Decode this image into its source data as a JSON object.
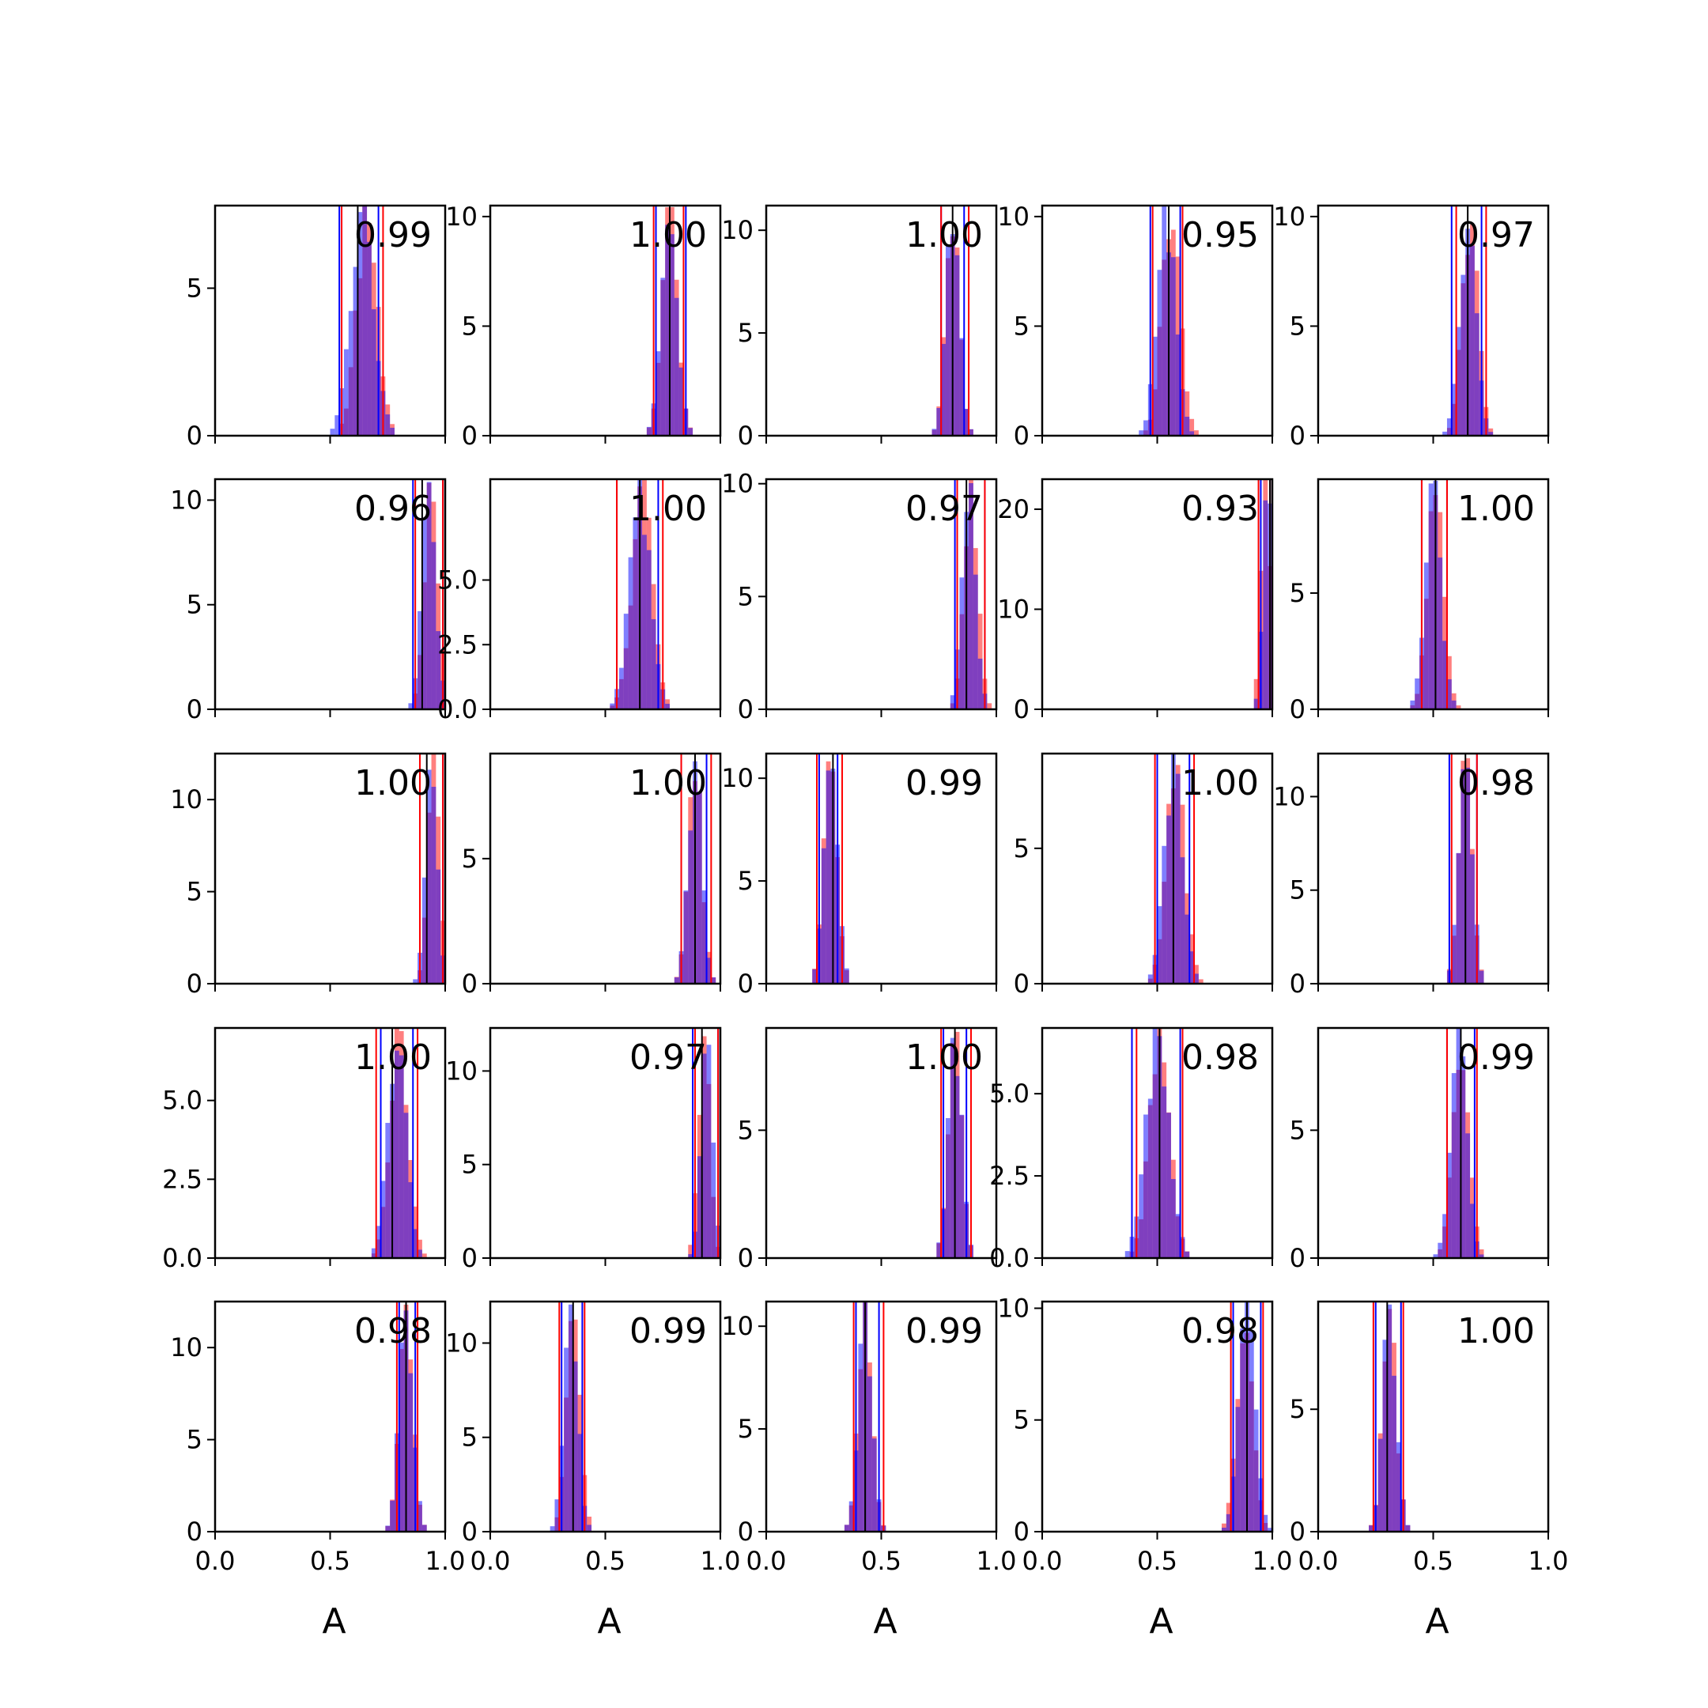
{
  "chart_data": {
    "type": "histogram-grid",
    "rows": 5,
    "cols": 5,
    "x_range": [
      0.0,
      1.0
    ],
    "x_ticks": [
      0.0,
      0.5,
      1.0
    ],
    "x_tick_labels": [
      "0.0",
      "0.5",
      "1.0"
    ],
    "xlabel": "A",
    "colors": {
      "red": "#ff0000",
      "blue": "#0000ff",
      "overlap": "#7f00bf",
      "mean_line": "#000000"
    },
    "bin_width": 0.02,
    "panels": [
      {
        "r": "0.99",
        "ymax": 7.8,
        "yticks": [
          0,
          5
        ],
        "ytick_labels": [
          "0",
          "5"
        ],
        "mean": 0.62,
        "red": {
          "center": 0.66,
          "sd": 0.045,
          "lines": [
            0.55,
            0.73
          ]
        },
        "blue": {
          "center": 0.64,
          "sd": 0.05,
          "lines": [
            0.54,
            0.71
          ]
        }
      },
      {
        "r": "1.00",
        "ymax": 10.5,
        "yticks": [
          0,
          5,
          10
        ],
        "ytick_labels": [
          "0",
          "5",
          "10"
        ],
        "mean": 0.78,
        "red": {
          "center": 0.78,
          "sd": 0.035,
          "lines": [
            0.71,
            0.84
          ]
        },
        "blue": {
          "center": 0.78,
          "sd": 0.035,
          "lines": [
            0.72,
            0.85
          ]
        }
      },
      {
        "r": "1.00",
        "ymax": 11.2,
        "yticks": [
          0,
          5,
          10
        ],
        "ytick_labels": [
          "0",
          "5",
          "10"
        ],
        "mean": 0.81,
        "red": {
          "center": 0.81,
          "sd": 0.03,
          "lines": [
            0.76,
            0.88
          ]
        },
        "blue": {
          "center": 0.81,
          "sd": 0.03,
          "lines": [
            0.76,
            0.86
          ]
        }
      },
      {
        "r": "0.95",
        "ymax": 10.5,
        "yticks": [
          0,
          5,
          10
        ],
        "ytick_labels": [
          "0",
          "5",
          "10"
        ],
        "mean": 0.55,
        "red": {
          "center": 0.56,
          "sd": 0.04,
          "lines": [
            0.48,
            0.61
          ]
        },
        "blue": {
          "center": 0.54,
          "sd": 0.04,
          "lines": [
            0.47,
            0.6
          ]
        }
      },
      {
        "r": "0.97",
        "ymax": 10.5,
        "yticks": [
          0,
          5,
          10
        ],
        "ytick_labels": [
          "0",
          "5",
          "10"
        ],
        "mean": 0.65,
        "red": {
          "center": 0.66,
          "sd": 0.035,
          "lines": [
            0.6,
            0.73
          ]
        },
        "blue": {
          "center": 0.65,
          "sd": 0.035,
          "lines": [
            0.58,
            0.71
          ]
        }
      },
      {
        "r": "0.96",
        "ymax": 11.0,
        "yticks": [
          0,
          5,
          10
        ],
        "ytick_labels": [
          "0",
          "5",
          "10"
        ],
        "mean": 0.9,
        "red": {
          "center": 0.94,
          "sd": 0.03,
          "lines": [
            0.87,
            0.99
          ]
        },
        "blue": {
          "center": 0.93,
          "sd": 0.03,
          "lines": [
            0.86,
            0.99
          ]
        }
      },
      {
        "r": "1.00",
        "ymax": 8.9,
        "yticks": [
          0,
          2.5,
          5
        ],
        "ytick_labels": [
          "0.0",
          "2.5",
          "5.0"
        ],
        "mean": 0.65,
        "red": {
          "center": 0.66,
          "sd": 0.045,
          "lines": [
            0.55,
            0.75
          ]
        },
        "blue": {
          "center": 0.65,
          "sd": 0.045,
          "lines": [
            0.55,
            0.73
          ]
        }
      },
      {
        "r": "0.97",
        "ymax": 10.2,
        "yticks": [
          0,
          5,
          10
        ],
        "ytick_labels": [
          "0",
          "5",
          "10"
        ],
        "mean": 0.87,
        "red": {
          "center": 0.89,
          "sd": 0.03,
          "lines": [
            0.83,
            0.95
          ]
        },
        "blue": {
          "center": 0.88,
          "sd": 0.03,
          "lines": [
            0.82,
            0.95
          ]
        }
      },
      {
        "r": "0.93",
        "ymax": 23.0,
        "yticks": [
          0,
          10,
          20
        ],
        "ytick_labels": [
          "0",
          "10",
          "20"
        ],
        "mean": 0.99,
        "red": {
          "center": 0.97,
          "sd": 0.02,
          "lines": [
            0.94,
            0.99
          ]
        },
        "blue": {
          "center": 0.98,
          "sd": 0.02,
          "lines": [
            0.95,
            0.99
          ]
        }
      },
      {
        "r": "1.00",
        "ymax": 9.9,
        "yticks": [
          0,
          5
        ],
        "ytick_labels": [
          "0",
          "5"
        ],
        "mean": 0.51,
        "red": {
          "center": 0.51,
          "sd": 0.035,
          "lines": [
            0.45,
            0.56
          ]
        },
        "blue": {
          "center": 0.5,
          "sd": 0.035,
          "lines": [
            0.45,
            0.56
          ]
        }
      },
      {
        "r": "1.00",
        "ymax": 12.5,
        "yticks": [
          0,
          5,
          10
        ],
        "ytick_labels": [
          "0",
          "5",
          "10"
        ],
        "mean": 0.92,
        "red": {
          "center": 0.95,
          "sd": 0.025,
          "lines": [
            0.89,
            0.99
          ]
        },
        "blue": {
          "center": 0.94,
          "sd": 0.025,
          "lines": [
            0.89,
            0.99
          ]
        }
      },
      {
        "r": "1.00",
        "ymax": 9.2,
        "yticks": [
          0,
          5
        ],
        "ytick_labels": [
          "0",
          "5"
        ],
        "mean": 0.89,
        "red": {
          "center": 0.89,
          "sd": 0.03,
          "lines": [
            0.83,
            0.96
          ]
        },
        "blue": {
          "center": 0.89,
          "sd": 0.03,
          "lines": [
            0.83,
            0.94
          ]
        }
      },
      {
        "r": "0.99",
        "ymax": 11.2,
        "yticks": [
          0,
          5,
          10
        ],
        "ytick_labels": [
          "0",
          "5",
          "10"
        ],
        "mean": 0.29,
        "red": {
          "center": 0.28,
          "sd": 0.03,
          "lines": [
            0.22,
            0.33
          ]
        },
        "blue": {
          "center": 0.28,
          "sd": 0.03,
          "lines": [
            0.23,
            0.31
          ]
        }
      },
      {
        "r": "1.00",
        "ymax": 8.5,
        "yticks": [
          0,
          5
        ],
        "ytick_labels": [
          "0",
          "5"
        ],
        "mean": 0.57,
        "red": {
          "center": 0.58,
          "sd": 0.04,
          "lines": [
            0.49,
            0.66
          ]
        },
        "blue": {
          "center": 0.57,
          "sd": 0.04,
          "lines": [
            0.5,
            0.64
          ]
        }
      },
      {
        "r": "0.98",
        "ymax": 12.3,
        "yticks": [
          0,
          5,
          10
        ],
        "ytick_labels": [
          "0",
          "5",
          "10"
        ],
        "mean": 0.64,
        "red": {
          "center": 0.64,
          "sd": 0.03,
          "lines": [
            0.58,
            0.69
          ]
        },
        "blue": {
          "center": 0.64,
          "sd": 0.03,
          "lines": [
            0.57,
            0.69
          ]
        }
      },
      {
        "r": "1.00",
        "ymax": 7.3,
        "yticks": [
          0,
          2.5,
          5
        ],
        "ytick_labels": [
          "0.0",
          "2.5",
          "5.0"
        ],
        "mean": 0.77,
        "red": {
          "center": 0.8,
          "sd": 0.04,
          "lines": [
            0.7,
            0.88
          ]
        },
        "blue": {
          "center": 0.79,
          "sd": 0.04,
          "lines": [
            0.72,
            0.86
          ]
        }
      },
      {
        "r": "0.97",
        "ymax": 12.3,
        "yticks": [
          0,
          5,
          10
        ],
        "ytick_labels": [
          "0",
          "5",
          "10"
        ],
        "mean": 0.92,
        "red": {
          "center": 0.93,
          "sd": 0.025,
          "lines": [
            0.89,
            0.99
          ]
        },
        "blue": {
          "center": 0.94,
          "sd": 0.025,
          "lines": [
            0.88,
            0.99
          ]
        }
      },
      {
        "r": "1.00",
        "ymax": 9.0,
        "yticks": [
          0,
          5
        ],
        "ytick_labels": [
          "0",
          "5"
        ],
        "mean": 0.82,
        "red": {
          "center": 0.82,
          "sd": 0.03,
          "lines": [
            0.76,
            0.89
          ]
        },
        "blue": {
          "center": 0.82,
          "sd": 0.03,
          "lines": [
            0.77,
            0.87
          ]
        }
      },
      {
        "r": "0.98",
        "ymax": 7.0,
        "yticks": [
          0,
          2.5,
          5
        ],
        "ytick_labels": [
          "0.0",
          "2.5",
          "5.0"
        ],
        "mean": 0.51,
        "red": {
          "center": 0.51,
          "sd": 0.045,
          "lines": [
            0.41,
            0.61
          ]
        },
        "blue": {
          "center": 0.5,
          "sd": 0.05,
          "lines": [
            0.39,
            0.6
          ]
        }
      },
      {
        "r": "0.99",
        "ymax": 9.0,
        "yticks": [
          0,
          5
        ],
        "ytick_labels": [
          "0",
          "5"
        ],
        "mean": 0.62,
        "red": {
          "center": 0.62,
          "sd": 0.035,
          "lines": [
            0.56,
            0.69
          ]
        },
        "blue": {
          "center": 0.61,
          "sd": 0.035,
          "lines": [
            0.56,
            0.68
          ]
        }
      },
      {
        "r": "0.98",
        "ymax": 12.5,
        "yticks": [
          0,
          5,
          10
        ],
        "ytick_labels": [
          "0",
          "5",
          "10"
        ],
        "mean": 0.83,
        "red": {
          "center": 0.83,
          "sd": 0.03,
          "lines": [
            0.79,
            0.88
          ]
        },
        "blue": {
          "center": 0.83,
          "sd": 0.03,
          "lines": [
            0.8,
            0.87
          ]
        }
      },
      {
        "r": "0.99",
        "ymax": 12.2,
        "yticks": [
          0,
          5,
          10
        ],
        "ytick_labels": [
          "0",
          "5",
          "10"
        ],
        "mean": 0.36,
        "red": {
          "center": 0.36,
          "sd": 0.03,
          "lines": [
            0.3,
            0.41
          ]
        },
        "blue": {
          "center": 0.35,
          "sd": 0.03,
          "lines": [
            0.31,
            0.4
          ]
        }
      },
      {
        "r": "0.99",
        "ymax": 11.2,
        "yticks": [
          0,
          5,
          10
        ],
        "ytick_labels": [
          "0",
          "5",
          "10"
        ],
        "mean": 0.43,
        "red": {
          "center": 0.43,
          "sd": 0.03,
          "lines": [
            0.38,
            0.51
          ]
        },
        "blue": {
          "center": 0.43,
          "sd": 0.03,
          "lines": [
            0.39,
            0.49
          ]
        }
      },
      {
        "r": "0.98",
        "ymax": 10.3,
        "yticks": [
          0,
          5,
          10
        ],
        "ytick_labels": [
          "0",
          "5",
          "10"
        ],
        "mean": 0.89,
        "red": {
          "center": 0.88,
          "sd": 0.035,
          "lines": [
            0.82,
            0.96
          ]
        },
        "blue": {
          "center": 0.89,
          "sd": 0.035,
          "lines": [
            0.83,
            0.95
          ]
        }
      },
      {
        "r": "1.00",
        "ymax": 9.4,
        "yticks": [
          0,
          5
        ],
        "ytick_labels": [
          "0",
          "5"
        ],
        "mean": 0.3,
        "red": {
          "center": 0.31,
          "sd": 0.03,
          "lines": [
            0.24,
            0.37
          ]
        },
        "blue": {
          "center": 0.31,
          "sd": 0.03,
          "lines": [
            0.25,
            0.36
          ]
        }
      }
    ]
  }
}
